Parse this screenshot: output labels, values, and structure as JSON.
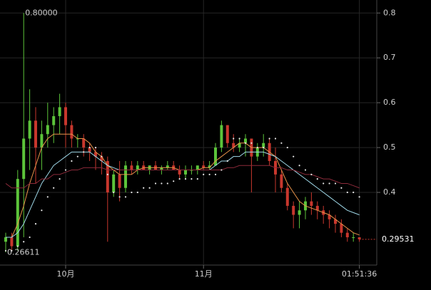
{
  "chart_data": {
    "type": "candlestick",
    "ylim": [
      0.238,
      0.829
    ],
    "yticks": [
      0.4,
      0.5,
      0.6,
      0.7,
      0.8
    ],
    "grid": true,
    "up_color": "#5cc43a",
    "down_color": "#c8372d",
    "categories": [
      null,
      null,
      null,
      null,
      null,
      null,
      null,
      null,
      null,
      null,
      "10月",
      null,
      null,
      null,
      null,
      null,
      null,
      null,
      null,
      null,
      null,
      null,
      null,
      null,
      null,
      null,
      null,
      null,
      null,
      null,
      null,
      null,
      null,
      "11月",
      null,
      null,
      null,
      null,
      null,
      null,
      null,
      null,
      null,
      null,
      null,
      null,
      null,
      null,
      null,
      null,
      null,
      null,
      null,
      null,
      null,
      null,
      null,
      null,
      null,
      "01:51:36"
    ],
    "candles": [
      [
        0.29,
        0.31,
        0.26611,
        0.3
      ],
      [
        0.3,
        0.31,
        0.27,
        0.28
      ],
      [
        0.28,
        0.45,
        0.27,
        0.43
      ],
      [
        0.43,
        0.8,
        0.3,
        0.52
      ],
      [
        0.52,
        0.63,
        0.45,
        0.56
      ],
      [
        0.56,
        0.59,
        0.42,
        0.5
      ],
      [
        0.5,
        0.56,
        0.45,
        0.53
      ],
      [
        0.53,
        0.6,
        0.5,
        0.55
      ],
      [
        0.55,
        0.59,
        0.51,
        0.57
      ],
      [
        0.57,
        0.62,
        0.53,
        0.59
      ],
      [
        0.59,
        0.6,
        0.5,
        0.55
      ],
      [
        0.55,
        0.56,
        0.5,
        0.52
      ],
      [
        0.52,
        0.53,
        0.5,
        0.52
      ],
      [
        0.52,
        0.53,
        0.48,
        0.5
      ],
      [
        0.5,
        0.51,
        0.47,
        0.49
      ],
      [
        0.49,
        0.5,
        0.45,
        0.48
      ],
      [
        0.48,
        0.49,
        0.44,
        0.47
      ],
      [
        0.47,
        0.48,
        0.29,
        0.4
      ],
      [
        0.4,
        0.45,
        0.39,
        0.44
      ],
      [
        0.44,
        0.47,
        0.38,
        0.41
      ],
      [
        0.41,
        0.47,
        0.4,
        0.46
      ],
      [
        0.46,
        0.47,
        0.44,
        0.45
      ],
      [
        0.45,
        0.47,
        0.44,
        0.46
      ],
      [
        0.46,
        0.47,
        0.45,
        0.45
      ],
      [
        0.45,
        0.46,
        0.44,
        0.46
      ],
      [
        0.46,
        0.47,
        0.45,
        0.45
      ],
      [
        0.45,
        0.46,
        0.44,
        0.455
      ],
      [
        0.455,
        0.47,
        0.45,
        0.46
      ],
      [
        0.46,
        0.47,
        0.45,
        0.45
      ],
      [
        0.45,
        0.46,
        0.43,
        0.44
      ],
      [
        0.44,
        0.46,
        0.43,
        0.45
      ],
      [
        0.45,
        0.46,
        0.44,
        0.45
      ],
      [
        0.45,
        0.46,
        0.44,
        0.46
      ],
      [
        0.46,
        0.47,
        0.45,
        0.455
      ],
      [
        0.455,
        0.47,
        0.45,
        0.46
      ],
      [
        0.46,
        0.51,
        0.46,
        0.5
      ],
      [
        0.5,
        0.56,
        0.49,
        0.55
      ],
      [
        0.55,
        0.55,
        0.5,
        0.51
      ],
      [
        0.51,
        0.53,
        0.49,
        0.5
      ],
      [
        0.5,
        0.52,
        0.49,
        0.51
      ],
      [
        0.51,
        0.53,
        0.48,
        0.52
      ],
      [
        0.52,
        0.52,
        0.4,
        0.48
      ],
      [
        0.48,
        0.51,
        0.47,
        0.5
      ],
      [
        0.5,
        0.53,
        0.48,
        0.51
      ],
      [
        0.51,
        0.52,
        0.46,
        0.47
      ],
      [
        0.47,
        0.5,
        0.4,
        0.44
      ],
      [
        0.44,
        0.45,
        0.4,
        0.41
      ],
      [
        0.41,
        0.42,
        0.36,
        0.37
      ],
      [
        0.37,
        0.38,
        0.32,
        0.35
      ],
      [
        0.35,
        0.38,
        0.32,
        0.36
      ],
      [
        0.36,
        0.39,
        0.34,
        0.38
      ],
      [
        0.38,
        0.4,
        0.35,
        0.37
      ],
      [
        0.37,
        0.38,
        0.34,
        0.36
      ],
      [
        0.36,
        0.37,
        0.33,
        0.35
      ],
      [
        0.35,
        0.36,
        0.32,
        0.34
      ],
      [
        0.34,
        0.35,
        0.31,
        0.33
      ],
      [
        0.33,
        0.34,
        0.3,
        0.31
      ],
      [
        0.31,
        0.32,
        0.29,
        0.3
      ],
      [
        0.3,
        0.31,
        0.29,
        0.3
      ],
      [
        0.3,
        0.3,
        0.29,
        0.29531
      ]
    ],
    "high_label": {
      "value": 0.8,
      "label": "0.80000"
    },
    "low_label": {
      "value": 0.26611,
      "label": "0.26611"
    },
    "last_price": 0.29531,
    "series": [
      {
        "color": "#e8934a",
        "values": [
          0.3,
          0.3,
          0.33,
          0.37,
          0.42,
          0.46,
          0.5,
          0.52,
          0.53,
          0.53,
          0.53,
          0.53,
          0.52,
          0.52,
          0.51,
          0.49,
          0.48,
          0.46,
          0.45,
          0.44,
          0.44,
          0.44,
          0.45,
          0.455,
          0.455,
          0.455,
          0.455,
          0.455,
          0.455,
          0.45,
          0.45,
          0.45,
          0.45,
          0.455,
          0.455,
          0.47,
          0.48,
          0.49,
          0.5,
          0.51,
          0.51,
          0.5,
          0.5,
          0.5,
          0.49,
          0.48,
          0.45,
          0.42,
          0.4,
          0.38,
          0.37,
          0.365,
          0.36,
          0.355,
          0.35,
          0.34,
          0.33,
          0.32,
          0.31,
          0.305
        ]
      },
      {
        "color": "#9fd8e8",
        "values": [
          0.3,
          0.3,
          0.31,
          0.33,
          0.36,
          0.39,
          0.42,
          0.44,
          0.46,
          0.47,
          0.48,
          0.49,
          0.49,
          0.49,
          0.49,
          0.48,
          0.47,
          0.46,
          0.455,
          0.45,
          0.45,
          0.45,
          0.45,
          0.45,
          0.45,
          0.45,
          0.45,
          0.45,
          0.45,
          0.45,
          0.45,
          0.45,
          0.45,
          0.45,
          0.45,
          0.46,
          0.47,
          0.47,
          0.48,
          0.48,
          0.49,
          0.49,
          0.49,
          0.49,
          0.485,
          0.48,
          0.47,
          0.46,
          0.45,
          0.44,
          0.43,
          0.42,
          0.41,
          0.4,
          0.39,
          0.38,
          0.37,
          0.36,
          0.355,
          0.35
        ]
      },
      {
        "color": "#8c2a3a",
        "values": [
          0.42,
          0.41,
          0.41,
          0.41,
          0.42,
          0.42,
          0.43,
          0.43,
          0.44,
          0.44,
          0.445,
          0.45,
          0.45,
          0.455,
          0.455,
          0.455,
          0.455,
          0.45,
          0.45,
          0.45,
          0.45,
          0.45,
          0.45,
          0.45,
          0.45,
          0.45,
          0.45,
          0.45,
          0.45,
          0.45,
          0.45,
          0.45,
          0.45,
          0.45,
          0.45,
          0.45,
          0.45,
          0.455,
          0.455,
          0.46,
          0.46,
          0.46,
          0.46,
          0.46,
          0.46,
          0.455,
          0.455,
          0.45,
          0.45,
          0.445,
          0.44,
          0.44,
          0.435,
          0.43,
          0.43,
          0.425,
          0.42,
          0.42,
          0.415,
          0.41
        ]
      }
    ],
    "sar": {
      "color": "#e6e6e6",
      "values": [
        0.27,
        0.27,
        0.28,
        0.29,
        0.3,
        0.33,
        0.36,
        0.39,
        0.41,
        0.43,
        0.45,
        0.47,
        0.48,
        0.49,
        0.5,
        0.5,
        0.48,
        0.44,
        0.4,
        0.39,
        0.39,
        0.4,
        0.4,
        0.41,
        0.41,
        0.42,
        0.42,
        0.42,
        0.425,
        0.43,
        0.43,
        0.43,
        0.43,
        0.44,
        0.44,
        0.44,
        0.45,
        0.47,
        0.52,
        0.52,
        0.51,
        0.51,
        0.5,
        0.5,
        0.52,
        0.52,
        0.51,
        0.5,
        0.48,
        0.46,
        0.45,
        0.44,
        0.43,
        0.42,
        0.42,
        0.42,
        0.41,
        0.4,
        0.4,
        0.39
      ]
    }
  }
}
